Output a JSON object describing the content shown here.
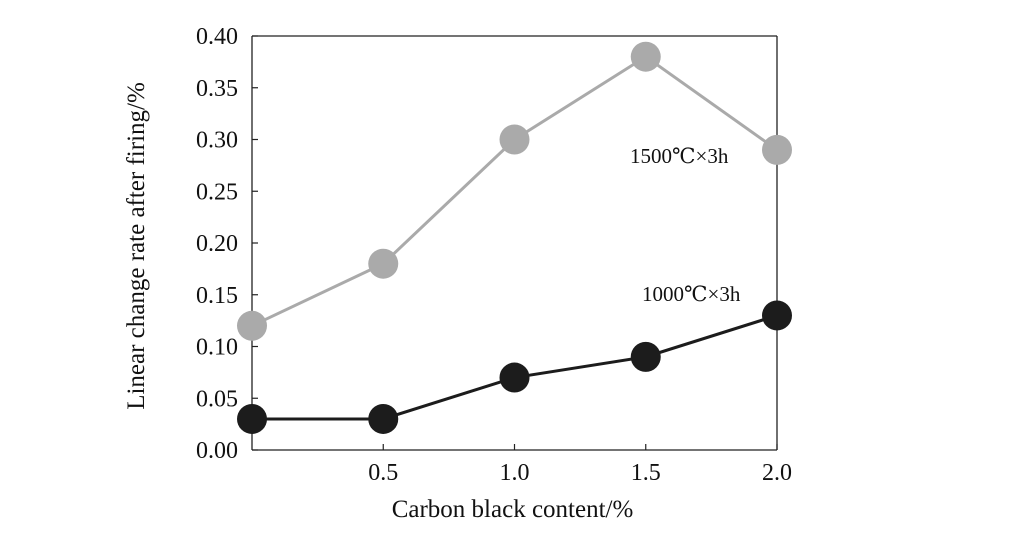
{
  "chart_data": {
    "type": "line",
    "title": "",
    "xlabel": "Carbon black content/%",
    "ylabel": "Linear change rate after firing/%",
    "x": [
      0,
      0.5,
      1.0,
      1.5,
      2.0
    ],
    "xlim": [
      0,
      2.0
    ],
    "ylim": [
      0,
      0.4
    ],
    "x_ticks": [
      "0.5",
      "1.0",
      "1.5",
      "2.0"
    ],
    "y_ticks": [
      "0.00",
      "0.05",
      "0.10",
      "0.15",
      "0.20",
      "0.25",
      "0.30",
      "0.35",
      "0.40"
    ],
    "grid": false,
    "legend": "none (series labelled inline)",
    "series": [
      {
        "name": "1500℃×3h",
        "values": [
          0.12,
          0.18,
          0.3,
          0.38,
          0.29
        ],
        "color": "#aaaaaa"
      },
      {
        "name": "1000℃×3h",
        "values": [
          0.03,
          0.03,
          0.07,
          0.09,
          0.13
        ],
        "color": "#1c1c1c"
      }
    ]
  }
}
